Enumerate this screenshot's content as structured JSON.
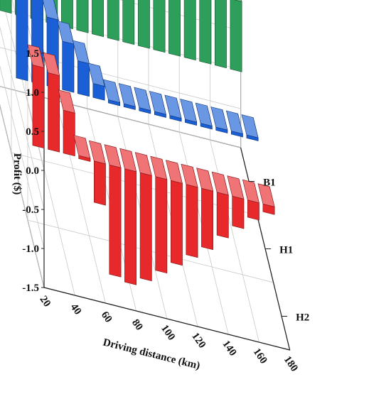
{
  "chart_data": {
    "type": "bar",
    "subtype": "3d-bar",
    "title": "",
    "xlabel": "Driving distance (km)",
    "ylabel": "",
    "zlabel": "Profit ($)",
    "zlim": [
      -1.5,
      1.5
    ],
    "z_ticks": [
      "-1.5",
      "-1.0",
      "-0.5",
      "0.0",
      "0.5",
      "1.0",
      "1.5"
    ],
    "x_ticks": [
      "20",
      "40",
      "60",
      "80",
      "100",
      "120",
      "140",
      "160",
      "180"
    ],
    "y_categories": [
      "B1",
      "H1",
      "H2"
    ],
    "grid": true,
    "x": [
      20,
      30,
      40,
      50,
      60,
      70,
      80,
      90,
      100,
      110,
      120,
      130,
      140,
      150,
      160,
      170
    ],
    "series": [
      {
        "name": "B1",
        "color": "#2e9e5b",
        "values": [
          1.48,
          1.47,
          1.46,
          1.45,
          1.44,
          1.43,
          1.42,
          1.41,
          1.4,
          1.38,
          1.36,
          1.34,
          1.32,
          1.2,
          1.02,
          0.9
        ]
      },
      {
        "name": "H1",
        "color": "#1a5fd6",
        "values": [
          1.22,
          1.1,
          0.88,
          0.62,
          0.42,
          0.18,
          0.0,
          0.0,
          0.0,
          0.0,
          0.0,
          0.0,
          0.0,
          0.0,
          0.0,
          0.0
        ]
      },
      {
        "name": "H2",
        "color": "#e8292b",
        "values": [
          1.03,
          0.98,
          0.55,
          0.0,
          -0.53,
          -1.4,
          -1.45,
          -1.35,
          -1.2,
          -1.05,
          -0.9,
          -0.75,
          -0.55,
          -0.38,
          -0.22,
          -0.1
        ]
      }
    ]
  }
}
